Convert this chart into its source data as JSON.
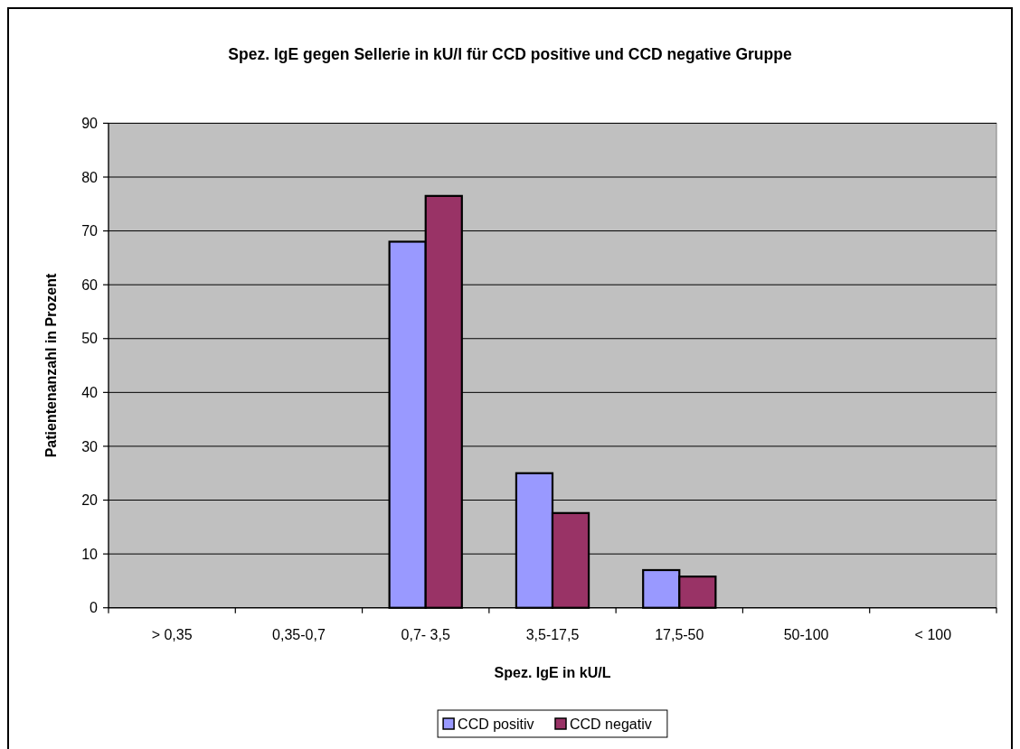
{
  "chart_data": {
    "type": "bar",
    "title": "Spez. IgE gegen Sellerie in kU/l für CCD positive und CCD negative Gruppe",
    "xlabel": "Spez. IgE in kU/L",
    "ylabel": "Patientenanzahl in Prozent",
    "categories": [
      "> 0,35",
      "0,35-0,7",
      "0,7- 3,5",
      "3,5-17,5",
      "17,5-50",
      "50-100",
      "< 100"
    ],
    "series": [
      {
        "name": "CCD positiv",
        "color": "#9999ff",
        "values": [
          0,
          0,
          68,
          25,
          7,
          0,
          0
        ]
      },
      {
        "name": "CCD negativ",
        "color": "#993366",
        "values": [
          0,
          0,
          76.5,
          17.6,
          5.8,
          0,
          0
        ]
      }
    ],
    "ylim": [
      0,
      90
    ],
    "yticks": [
      0,
      10,
      20,
      30,
      40,
      50,
      60,
      70,
      80,
      90
    ],
    "grid": "y",
    "legend": "bottom"
  }
}
